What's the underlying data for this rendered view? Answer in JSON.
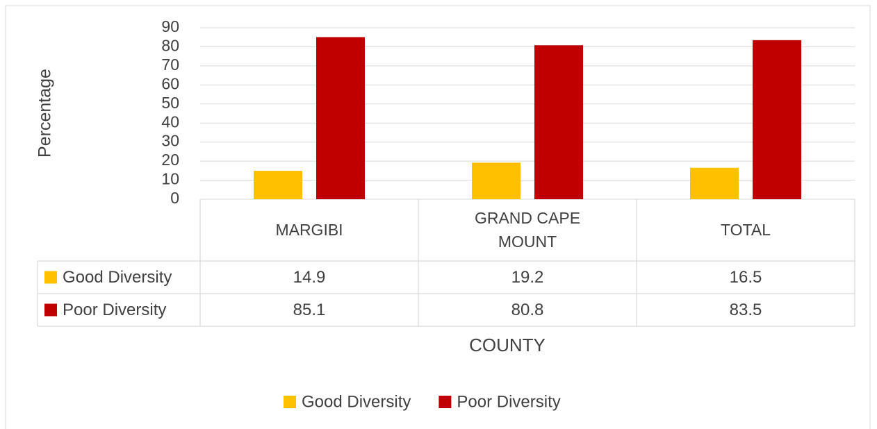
{
  "chart_data": {
    "type": "bar",
    "y_axis_label": "Percentage",
    "x_axis_label": "COUNTY",
    "categories": [
      "MARGIBI",
      "GRAND CAPE MOUNT",
      "TOTAL"
    ],
    "series": [
      {
        "name": "Good Diversity",
        "color": "#ffc000",
        "values": [
          14.9,
          19.2,
          16.5
        ]
      },
      {
        "name": "Poor Diversity",
        "color": "#c00000",
        "values": [
          85.1,
          80.8,
          83.5
        ]
      }
    ],
    "ylim": [
      0,
      90
    ],
    "yticks": [
      0,
      10,
      20,
      30,
      40,
      50,
      60,
      70,
      80,
      90
    ],
    "grid": true,
    "legend": "bottom"
  }
}
